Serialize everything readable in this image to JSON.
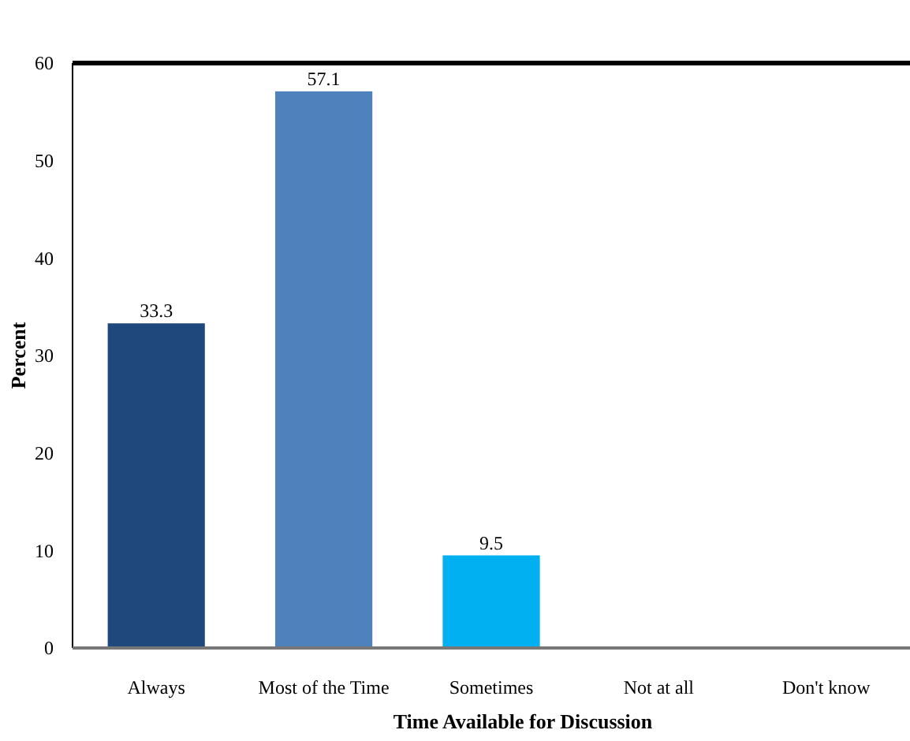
{
  "chart_data": {
    "type": "bar",
    "xlabel": "Time Available for Discussion",
    "ylabel": "Percent",
    "categories": [
      "Always",
      "Most of the Time",
      "Sometimes",
      "Not at all",
      "Don't know"
    ],
    "values": [
      33.3,
      57.1,
      9.5,
      0,
      0
    ],
    "colors": [
      "#1f497d",
      "#4f81bd",
      "#00b0f0",
      "#c0504d",
      "#9bbb59"
    ],
    "value_labels": [
      "33.3",
      "57.1",
      "9.5",
      null,
      null
    ],
    "ylim": [
      0,
      60
    ],
    "yticks": [
      0,
      10,
      20,
      30,
      40,
      50,
      60
    ],
    "grid": false
  }
}
